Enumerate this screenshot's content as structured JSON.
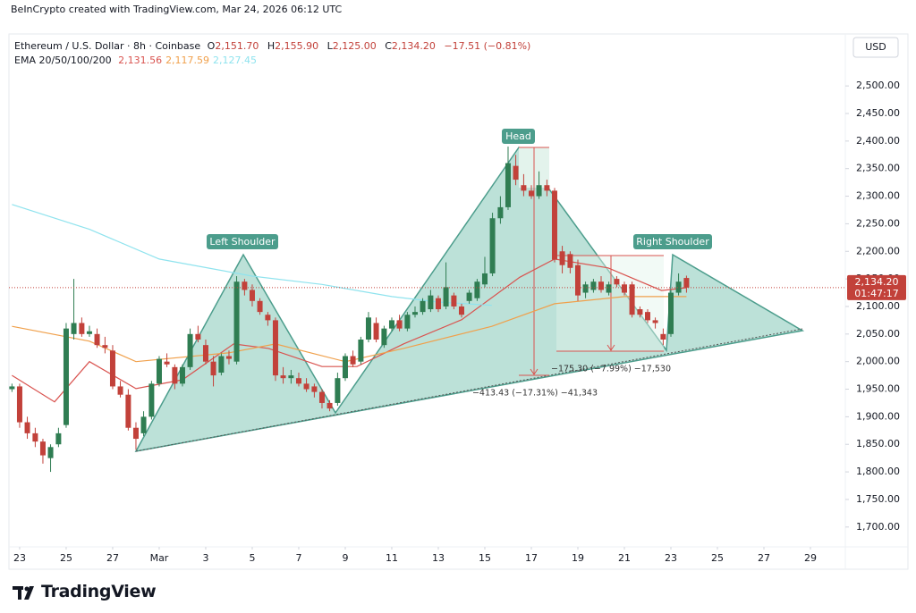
{
  "chart_data": {
    "type": "candlestick",
    "credit": "BeInCrypto created with TradingView.com, Mar 24, 2026 06:12 UTC",
    "title": "Ethereum / U.S. Dollar · 8h · Coinbase",
    "ohlc": [
      {
        "label": "O",
        "value": "2,151.70"
      },
      {
        "label": "H",
        "value": "2,155.90"
      },
      {
        "label": "L",
        "value": "2,125.00"
      },
      {
        "label": "C",
        "value": "2,134.20"
      }
    ],
    "change": "−17.51 (−0.81%)",
    "ema_label": "EMA 20/50/100/200",
    "currency": "USD",
    "last_price": {
      "value": 2134.2,
      "label": "2,134.20"
    },
    "countdown": "01:47:17",
    "brand": "TradingView",
    "annotations": [
      "Left Shoulder",
      "Head",
      "Right Shoulder",
      "−413.43 (−17.31%) −41,343",
      "−175.30 (−7.99%) −17,530"
    ],
    "up_color": "#2f7d52",
    "down_color": "#c2413a",
    "x": [
      -0.33,
      0,
      0.33,
      0.67,
      1,
      1.33,
      1.67,
      2,
      2.33,
      2.67,
      3,
      3.33,
      3.67,
      4,
      4.33,
      4.67,
      5,
      5.33,
      5.67,
      6,
      6.33,
      6.67,
      7,
      7.33,
      7.67,
      8,
      8.33,
      8.67,
      9,
      9.33,
      9.67,
      10,
      10.33,
      10.67,
      11,
      11.33,
      11.67,
      12,
      12.33,
      12.67,
      13,
      13.33,
      13.67,
      14,
      14.33,
      14.67,
      15,
      15.33,
      15.67,
      16,
      16.33,
      16.67,
      17,
      17.33,
      17.67,
      18,
      18.33,
      18.67,
      19,
      19.33,
      19.67,
      20,
      20.33,
      20.67,
      21,
      21.33,
      21.67,
      22,
      22.33,
      22.67,
      23,
      23.33,
      23.67,
      24,
      24.33,
      24.67,
      25,
      25.33,
      25.67,
      26,
      26.33,
      26.67,
      27,
      27.33,
      27.67,
      28,
      28.33,
      28.67
    ],
    "open": [
      1950,
      1955,
      1890,
      1870,
      1855,
      1825,
      1850,
      1885,
      2050,
      2070,
      2050,
      2050,
      2030,
      2020,
      1955,
      1940,
      1880,
      1870,
      1900,
      1960,
      2000,
      1990,
      1960,
      1990,
      2050,
      2030,
      2000,
      1980,
      2010,
      2000,
      2145,
      2130,
      2110,
      2085,
      2075,
      1975,
      1970,
      1970,
      1960,
      1955,
      1945,
      1925,
      1925,
      1970,
      2010,
      2000,
      2040,
      2070,
      2030,
      2060,
      2075,
      2060,
      2085,
      2090,
      2095,
      2115,
      2100,
      2120,
      2100,
      2110,
      2115,
      2140,
      2160,
      2260,
      2280,
      2355,
      2320,
      2310,
      2300,
      2320,
      2310,
      2200,
      2195,
      2175,
      2125,
      2130,
      2145,
      2125,
      2150,
      2140,
      2140,
      2095,
      2090,
      2075,
      2050,
      2050,
      2125,
      2151.7
    ],
    "high": [
      1960,
      1960,
      1900,
      1880,
      1860,
      1850,
      1880,
      2070,
      2150,
      2080,
      2065,
      2060,
      2045,
      2030,
      1965,
      1950,
      1890,
      1910,
      1965,
      2010,
      2015,
      1995,
      1995,
      2060,
      2065,
      2040,
      2010,
      2015,
      2020,
      2155,
      2150,
      2140,
      2115,
      2090,
      2080,
      1990,
      1985,
      1980,
      1970,
      1960,
      1950,
      1930,
      1980,
      2015,
      2020,
      2045,
      2090,
      2080,
      2065,
      2080,
      2085,
      2090,
      2100,
      2115,
      2130,
      2120,
      2180,
      2125,
      2105,
      2130,
      2150,
      2190,
      2270,
      2300,
      2390,
      2375,
      2340,
      2320,
      2345,
      2330,
      2315,
      2210,
      2200,
      2185,
      2145,
      2150,
      2155,
      2145,
      2155,
      2145,
      2145,
      2100,
      2095,
      2080,
      2060,
      2130,
      2160,
      2155.9
    ],
    "low": [
      1945,
      1880,
      1860,
      1845,
      1815,
      1800,
      1845,
      1880,
      2040,
      2045,
      2045,
      2025,
      2015,
      1950,
      1935,
      1875,
      1840,
      1865,
      1895,
      1955,
      1990,
      1950,
      1955,
      1985,
      2035,
      1995,
      1955,
      1975,
      1995,
      1995,
      2120,
      2100,
      2085,
      2065,
      1965,
      1960,
      1960,
      1955,
      1945,
      1935,
      1915,
      1910,
      1920,
      1965,
      1990,
      1995,
      2035,
      2035,
      2025,
      2055,
      2055,
      2055,
      2080,
      2085,
      2090,
      2090,
      2095,
      2095,
      2080,
      2105,
      2110,
      2135,
      2155,
      2250,
      2275,
      2320,
      2300,
      2295,
      2295,
      2300,
      2180,
      2160,
      2160,
      2110,
      2115,
      2125,
      2125,
      2120,
      2135,
      2120,
      2080,
      2080,
      2070,
      2060,
      2030,
      2045,
      2120,
      2125
    ],
    "close": [
      1955,
      1890,
      1870,
      1855,
      1830,
      1845,
      1870,
      2060,
      2070,
      2050,
      2055,
      2030,
      2025,
      1955,
      1940,
      1880,
      1860,
      1900,
      1960,
      2005,
      1995,
      1960,
      1990,
      2050,
      2040,
      2000,
      1975,
      2010,
      2005,
      2145,
      2130,
      2110,
      2090,
      2075,
      1975,
      1970,
      1975,
      1960,
      1950,
      1945,
      1925,
      1915,
      1970,
      2010,
      1995,
      2040,
      2080,
      2040,
      2060,
      2075,
      2060,
      2085,
      2090,
      2110,
      2120,
      2095,
      2135,
      2100,
      2085,
      2125,
      2145,
      2160,
      2260,
      2280,
      2360,
      2330,
      2310,
      2300,
      2320,
      2310,
      2185,
      2175,
      2170,
      2120,
      2140,
      2145,
      2130,
      2140,
      2140,
      2125,
      2085,
      2085,
      2075,
      2070,
      2040,
      2125,
      2145,
      2134.2
    ],
    "lines": [
      {
        "label": "2,131.56",
        "color": "#d9534f",
        "x": [
          -0.33,
          1.5,
          3,
          5,
          7,
          9.2,
          10.7,
          13,
          14.5,
          16.5,
          19,
          21.5,
          23,
          25.3,
          27.6,
          28.67
        ],
        "values": [
          1975,
          1927,
          2000,
          1951,
          1967,
          2032,
          2024,
          1991,
          1991,
          2032,
          2076,
          2153,
          2186,
          2170,
          2129,
          2134
        ]
      },
      {
        "label": "2,117.59",
        "color": "#f0a04b",
        "x": [
          -0.33,
          3,
          5,
          9,
          11,
          14,
          16.5,
          20.3,
          23,
          26,
          28.67
        ],
        "values": [
          2064,
          2037,
          2000,
          2016,
          2032,
          2000,
          2024,
          2064,
          2105,
          2118,
          2118
        ]
      },
      {
        "label": "2,127.45",
        "color": "#8fe3ee",
        "x": [
          -0.33,
          3,
          6,
          10,
          13,
          16,
          18,
          20.3
        ],
        "values": [
          2285,
          2240,
          2186,
          2155,
          2140,
          2118,
          2108,
          2102
        ]
      }
    ],
    "xlim": [
      -0.46,
      35.5
    ],
    "ylim": [
      1664,
      2591
    ],
    "xticks": [
      {
        "value": 0,
        "label": "23"
      },
      {
        "value": 2,
        "label": "25"
      },
      {
        "value": 4,
        "label": "27"
      },
      {
        "value": 6,
        "label": "Mar"
      },
      {
        "value": 8,
        "label": "3"
      },
      {
        "value": 10,
        "label": "5"
      },
      {
        "value": 12,
        "label": "7"
      },
      {
        "value": 14,
        "label": "9"
      },
      {
        "value": 16,
        "label": "11"
      },
      {
        "value": 18,
        "label": "13"
      },
      {
        "value": 20,
        "label": "15"
      },
      {
        "value": 22,
        "label": "17"
      },
      {
        "value": 24,
        "label": "19"
      },
      {
        "value": 26,
        "label": "21"
      },
      {
        "value": 28,
        "label": "23"
      },
      {
        "value": 30,
        "label": "25"
      },
      {
        "value": 32,
        "label": "27"
      },
      {
        "value": 34,
        "label": "29"
      }
    ],
    "yticks": [
      {
        "value": 1700,
        "label": "1,700.00"
      },
      {
        "value": 1750,
        "label": "1,750.00"
      },
      {
        "value": 1800,
        "label": "1,800.00"
      },
      {
        "value": 1850,
        "label": "1,850.00"
      },
      {
        "value": 1900,
        "label": "1,900.00"
      },
      {
        "value": 1950,
        "label": "1,950.00"
      },
      {
        "value": 2000,
        "label": "2,000.00"
      },
      {
        "value": 2050,
        "label": "2,050.00"
      },
      {
        "value": 2100,
        "label": "2,100.00"
      },
      {
        "value": 2150,
        "label": "2,150.00"
      },
      {
        "value": 2200,
        "label": "2,200.00"
      },
      {
        "value": 2250,
        "label": "2,250.00"
      },
      {
        "value": 2300,
        "label": "2,300.00"
      },
      {
        "value": 2350,
        "label": "2,350.00"
      },
      {
        "value": 2400,
        "label": "2,400.00"
      },
      {
        "value": 2450,
        "label": "2,450.00"
      },
      {
        "value": 2500,
        "label": "2,500.00"
      }
    ],
    "grid": false
  }
}
